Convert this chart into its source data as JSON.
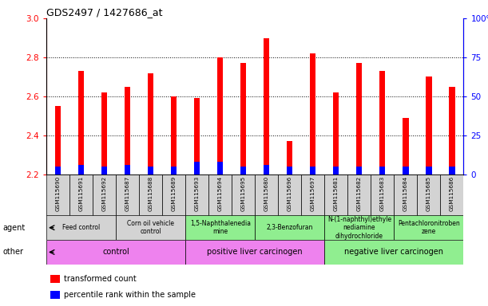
{
  "title": "GDS2497 / 1427686_at",
  "samples": [
    "GSM115690",
    "GSM115691",
    "GSM115692",
    "GSM115687",
    "GSM115688",
    "GSM115689",
    "GSM115693",
    "GSM115694",
    "GSM115695",
    "GSM115680",
    "GSM115696",
    "GSM115697",
    "GSM115681",
    "GSM115682",
    "GSM115683",
    "GSM115684",
    "GSM115685",
    "GSM115686"
  ],
  "transformed_count": [
    2.55,
    2.73,
    2.62,
    2.65,
    2.72,
    2.6,
    2.59,
    2.8,
    2.77,
    2.9,
    2.37,
    2.82,
    2.62,
    2.77,
    2.73,
    2.49,
    2.7,
    2.65
  ],
  "percentile_rank": [
    5,
    6,
    5,
    6,
    5,
    5,
    8,
    8,
    5,
    6,
    5,
    5,
    5,
    5,
    5,
    5,
    5,
    5
  ],
  "ylim_left": [
    2.2,
    3.0
  ],
  "ylim_right": [
    0,
    100
  ],
  "yticks_left": [
    2.2,
    2.4,
    2.6,
    2.8,
    3.0
  ],
  "yticks_right": [
    0,
    25,
    50,
    75,
    100
  ],
  "bar_bottom": 2.2,
  "red_color": "#ff0000",
  "blue_color": "#0000ff",
  "agent_groups": [
    {
      "label": "Feed control",
      "start": 0,
      "end": 3,
      "color": "#d3d3d3"
    },
    {
      "label": "Corn oil vehicle\ncontrol",
      "start": 3,
      "end": 6,
      "color": "#d3d3d3"
    },
    {
      "label": "1,5-Naphthalenedia\nmine",
      "start": 6,
      "end": 9,
      "color": "#90ee90"
    },
    {
      "label": "2,3-Benzofuran",
      "start": 9,
      "end": 12,
      "color": "#90ee90"
    },
    {
      "label": "N-(1-naphthyl)ethyle\nnediamine\ndihydrochloride",
      "start": 12,
      "end": 15,
      "color": "#90ee90"
    },
    {
      "label": "Pentachloronitroben\nzene",
      "start": 15,
      "end": 18,
      "color": "#90ee90"
    }
  ],
  "other_groups": [
    {
      "label": "control",
      "start": 0,
      "end": 6,
      "color": "#ee82ee"
    },
    {
      "label": "positive liver carcinogen",
      "start": 6,
      "end": 12,
      "color": "#ee82ee"
    },
    {
      "label": "negative liver carcinogen",
      "start": 12,
      "end": 18,
      "color": "#90ee90"
    }
  ],
  "legend_items": [
    {
      "label": "transformed count",
      "color": "#ff0000"
    },
    {
      "label": "percentile rank within the sample",
      "color": "#0000ff"
    }
  ],
  "grid_yticks": [
    2.4,
    2.6,
    2.8
  ]
}
